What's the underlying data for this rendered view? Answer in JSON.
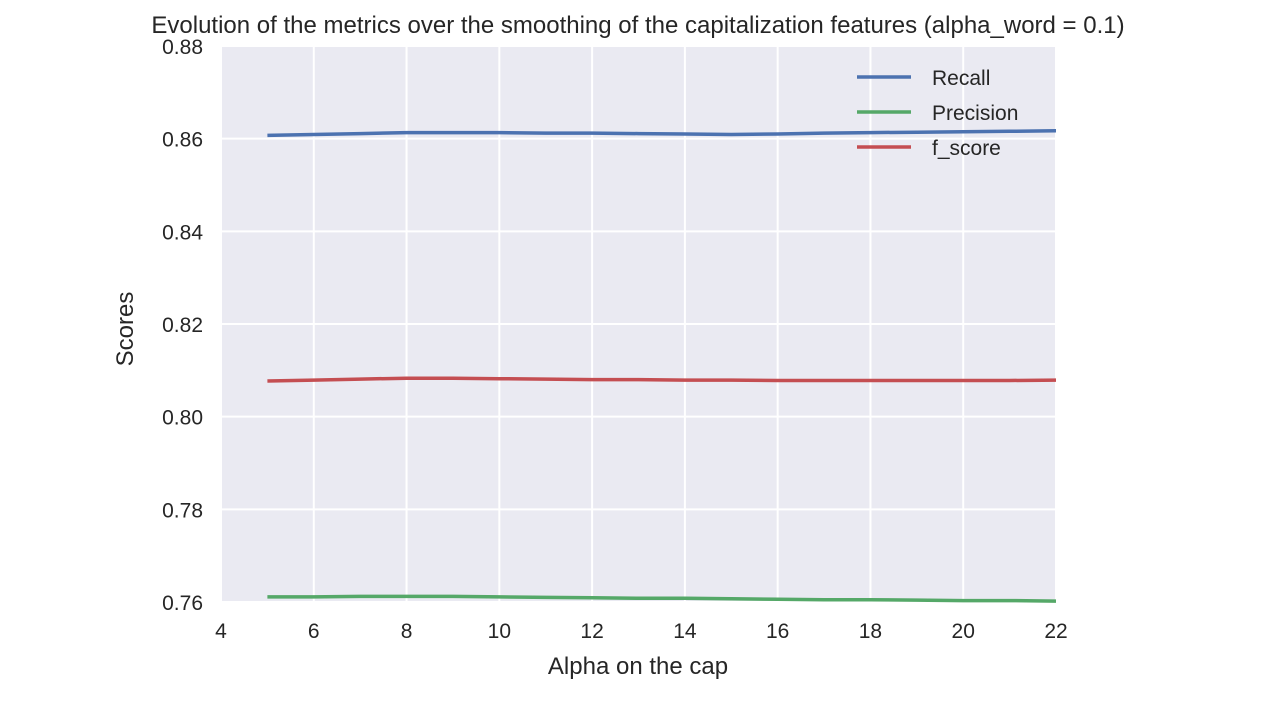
{
  "chart_data": {
    "type": "line",
    "title": "Evolution of the metrics over the smoothing of the capitalization features (alpha_word = 0.1)",
    "xlabel": "Alpha on the cap",
    "ylabel": "Scores",
    "xlim": [
      4,
      22
    ],
    "ylim": [
      0.76,
      0.88
    ],
    "xticks": [
      4,
      6,
      8,
      10,
      12,
      14,
      16,
      18,
      20,
      22
    ],
    "yticks": [
      0.76,
      0.78,
      0.8,
      0.82,
      0.84,
      0.86,
      0.88
    ],
    "ytick_labels": [
      "0.76",
      "0.78",
      "0.80",
      "0.82",
      "0.84",
      "0.86",
      "0.88"
    ],
    "grid": true,
    "legend": "top-right",
    "x": [
      5,
      6,
      7,
      8,
      9,
      10,
      11,
      12,
      13,
      14,
      15,
      16,
      17,
      18,
      19,
      20,
      21,
      22
    ],
    "series": [
      {
        "name": "Recall",
        "color": "#4c72b0",
        "values": [
          0.8607,
          0.8609,
          0.8611,
          0.8613,
          0.8613,
          0.8613,
          0.8612,
          0.8612,
          0.8611,
          0.861,
          0.8609,
          0.861,
          0.8612,
          0.8613,
          0.8614,
          0.8615,
          0.8616,
          0.8617
        ]
      },
      {
        "name": "Precision",
        "color": "#55a868",
        "values": [
          0.7611,
          0.7611,
          0.7612,
          0.7612,
          0.7612,
          0.7611,
          0.761,
          0.7609,
          0.7608,
          0.7608,
          0.7607,
          0.7606,
          0.7605,
          0.7605,
          0.7604,
          0.7603,
          0.7603,
          0.7602
        ]
      },
      {
        "name": "f_score",
        "color": "#c44e52",
        "values": [
          0.8077,
          0.8079,
          0.8081,
          0.8083,
          0.8083,
          0.8082,
          0.8081,
          0.808,
          0.808,
          0.8079,
          0.8079,
          0.8078,
          0.8078,
          0.8078,
          0.8078,
          0.8078,
          0.8078,
          0.8079
        ]
      }
    ]
  }
}
